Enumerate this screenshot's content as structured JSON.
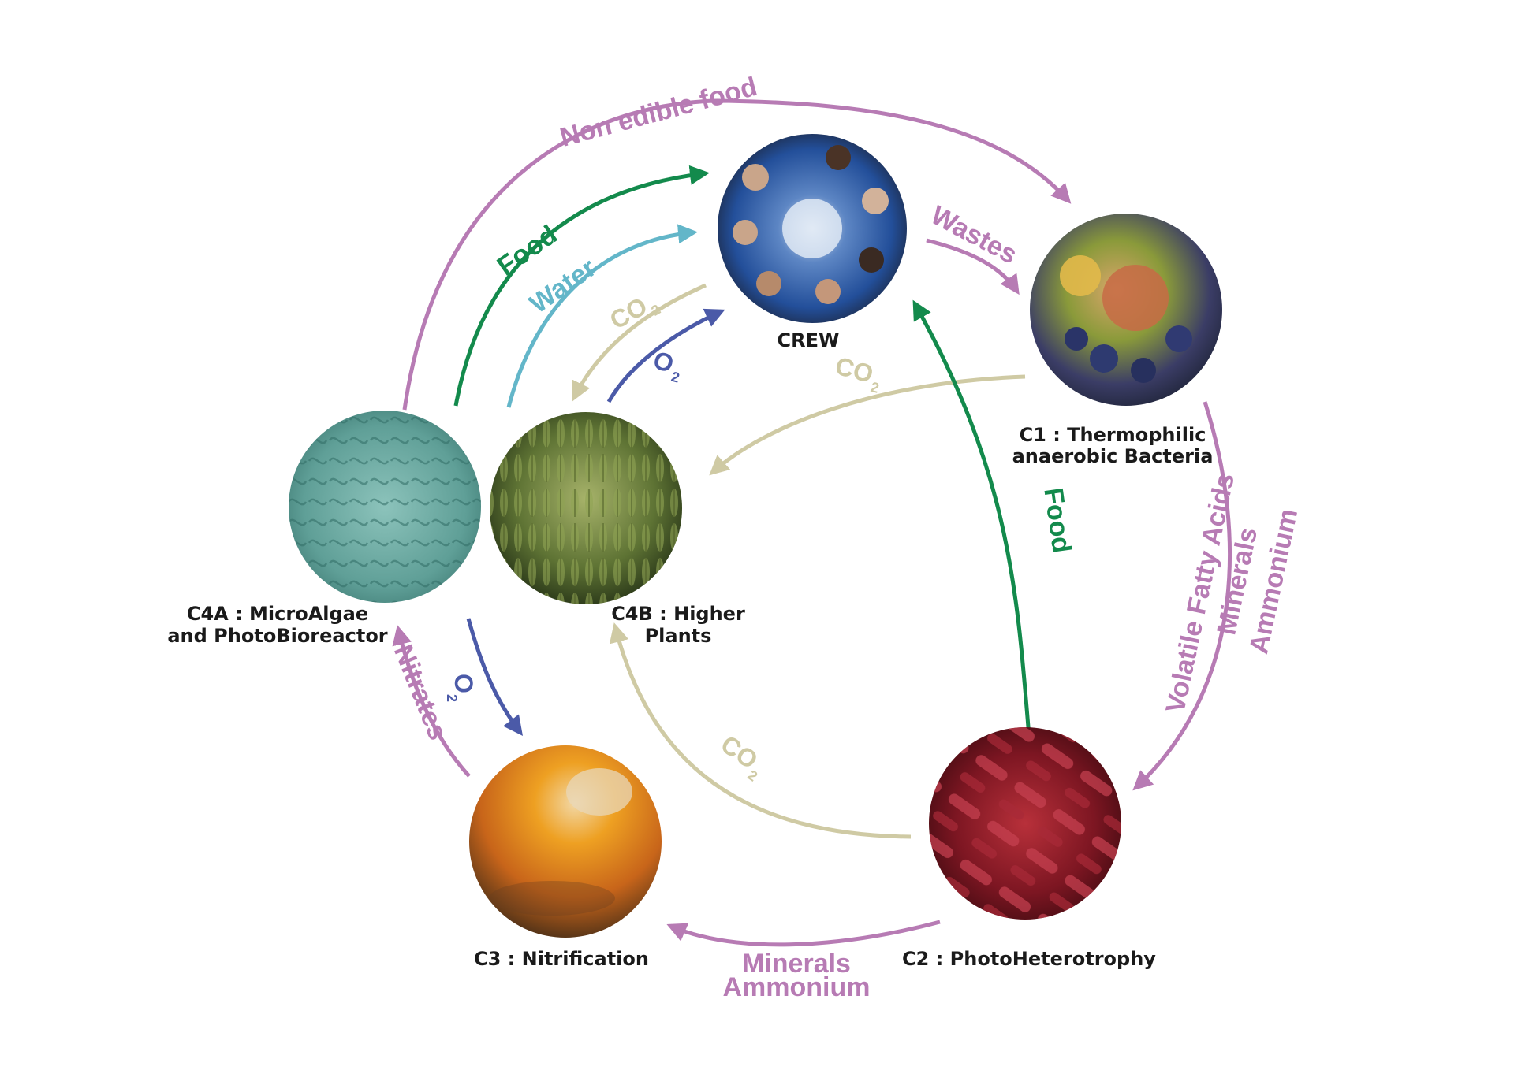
{
  "colors": {
    "purple": "#b77bb4",
    "green": "#138a4c",
    "cyan": "#63b6c9",
    "beige": "#cfcaa4",
    "blue": "#4b5aa8"
  },
  "nodes": {
    "crew": {
      "label": "CREW"
    },
    "c1": {
      "label_line1": "C1 : Thermophilic",
      "label_line2": "anaerobic Bacteria"
    },
    "c2": {
      "label": "C2 : PhotoHeterotrophy"
    },
    "c3": {
      "label": "C3 : Nitrification"
    },
    "c4a": {
      "label_line1": "C4A : MicroAlgae",
      "label_line2": "and PhotoBioreactor"
    },
    "c4b": {
      "label_line1": "C4B : Higher",
      "label_line2": "Plants"
    }
  },
  "flows": {
    "non_edible_food": "Non edible food",
    "wastes": "Wastes",
    "food_top": "Food",
    "water": "Water",
    "co2_top_base": "CO",
    "co2_top_sub": "2",
    "o2_top_base": "O",
    "o2_top_sub": "2",
    "co2_mid_base": "CO",
    "co2_mid_sub": "2",
    "food_right": "Food",
    "vfa_line1": "Volatile Fatty Acids",
    "vfa_line2": "Minerals",
    "vfa_line3": "Ammonium",
    "co2_bottom_base": "CO",
    "co2_bottom_sub": "2",
    "o2_left_base": "O",
    "o2_left_sub": "2",
    "nitrates": "Nitrates",
    "minerals": "Minerals",
    "ammonium": "Ammonium"
  }
}
